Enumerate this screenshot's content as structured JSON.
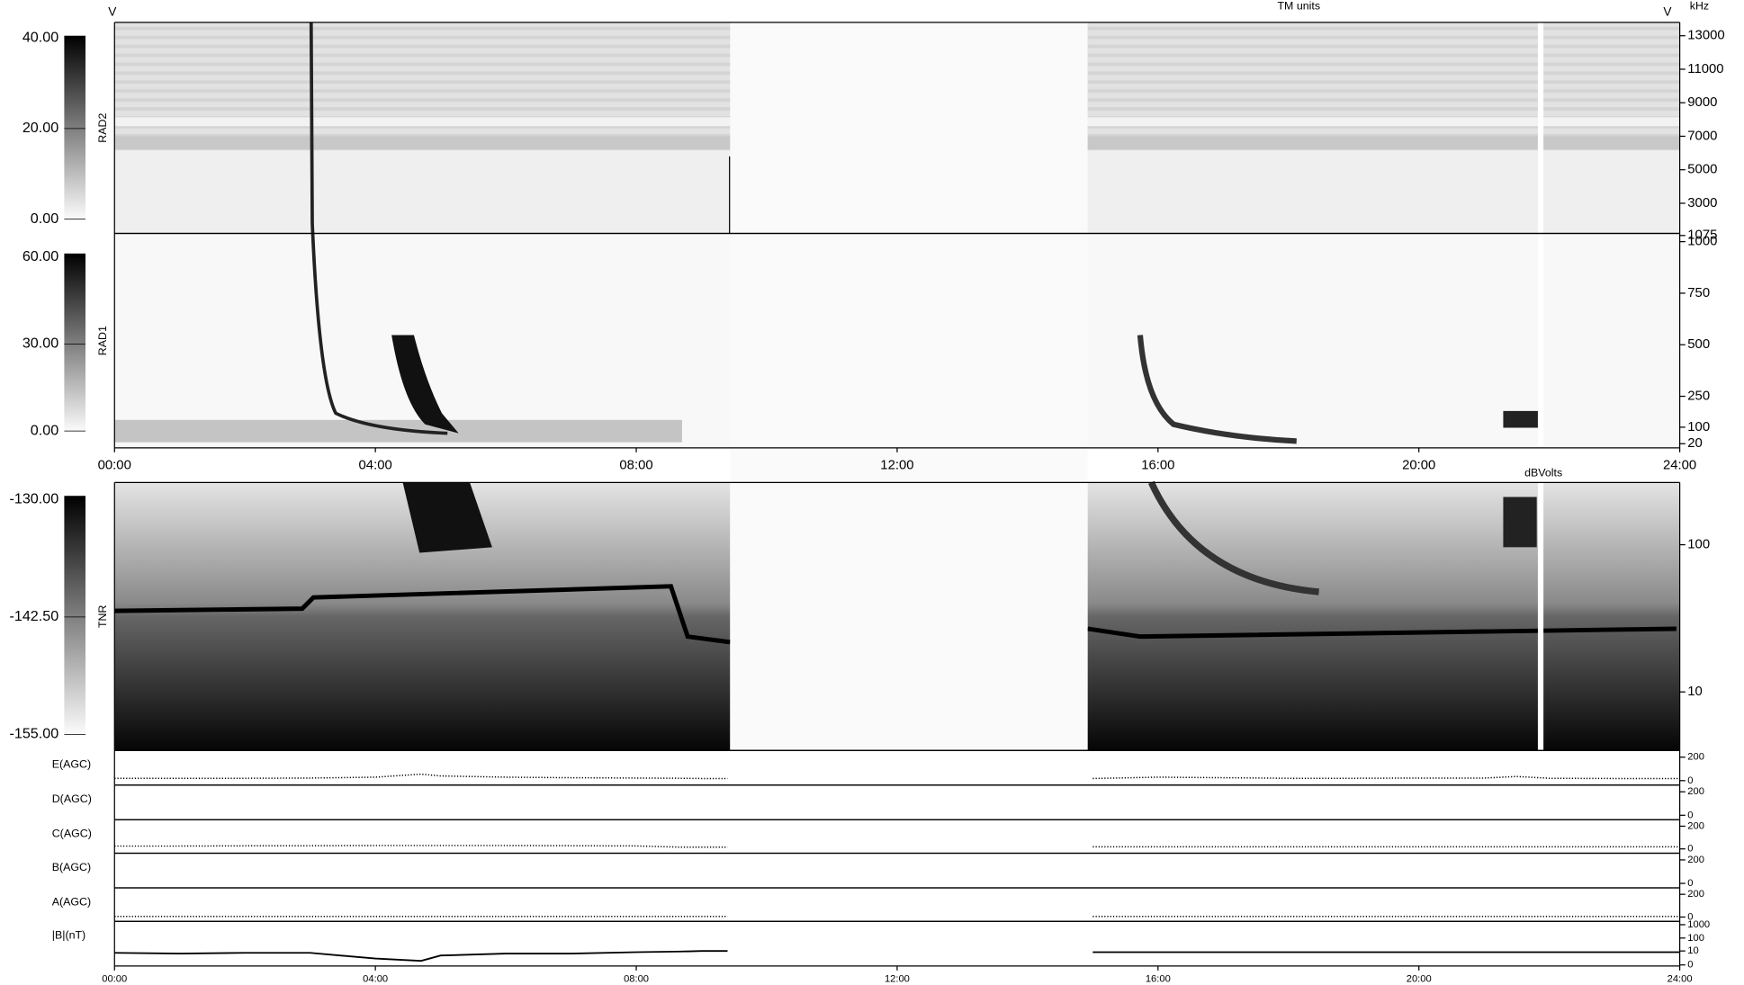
{
  "header": {
    "left_marker": "V",
    "right_marker": "V",
    "units": "TM units",
    "freq_units": "kHz"
  },
  "chart_data": [
    {
      "type": "spectrogram",
      "label": "RAD2",
      "ylim": [
        1200,
        13800
      ],
      "yticks": [
        13000,
        11000,
        9000,
        7000,
        5000,
        3000,
        1075
      ],
      "colorbar": {
        "lim": [
          -0.7,
          40.5
        ],
        "ticks": [
          {
            "value": 40,
            "label": "40.00"
          },
          {
            "value": 20,
            "label": "20.00"
          },
          {
            "value": 0,
            "label": "0.00"
          }
        ]
      }
    },
    {
      "type": "spectrogram",
      "label": "RAD1",
      "ylim": [
        0,
        1040
      ],
      "yticks": [
        1000,
        750,
        500,
        250,
        100,
        20
      ],
      "colorbar": {
        "lim": [
          -1.2,
          61.2
        ],
        "ticks": [
          {
            "value": 60,
            "label": "60.00"
          },
          {
            "value": 30,
            "label": "30.00"
          },
          {
            "value": 0,
            "label": "0.00"
          }
        ]
      },
      "xlim": [
        0,
        24
      ],
      "xticks": [
        {
          "value": 0,
          "label": "00:00"
        },
        {
          "value": 4,
          "label": "04:00"
        },
        {
          "value": 8,
          "label": "08:00"
        },
        {
          "value": 12,
          "label": "12:00"
        },
        {
          "value": 16,
          "label": "16:00"
        },
        {
          "value": 20,
          "label": "20:00"
        },
        {
          "value": 24,
          "label": "24:00"
        }
      ]
    },
    {
      "type": "spectrogram",
      "label": "TNR",
      "log_scale": true,
      "ylim": [
        4,
        265
      ],
      "yticks": [
        100,
        10
      ],
      "colorbar_units": "dBVolts",
      "colorbar": {
        "lim": [
          -155.4,
          -129.6
        ],
        "ticks": [
          {
            "value": -130,
            "label": "-130.00"
          },
          {
            "value": -142.5,
            "label": "-142.50"
          },
          {
            "value": -155,
            "label": "-155.00"
          }
        ]
      }
    },
    {
      "type": "line",
      "label": "E(AGC)",
      "ylim": [
        -38,
        257
      ],
      "yticks": [
        200,
        0
      ],
      "xlim": [
        0,
        24
      ],
      "line_style": "dotted",
      "x": [
        0,
        1,
        2,
        3,
        4,
        4.7,
        5,
        6,
        7,
        8,
        8.7,
        9,
        9.4,
        12,
        15,
        16,
        17,
        18,
        19,
        20,
        21,
        21.5,
        22,
        23,
        24
      ],
      "series": [
        {
          "name": "E(AGC)",
          "color": "#000000",
          "values": [
            20,
            20,
            20,
            22,
            30,
            55,
            40,
            30,
            25,
            22,
            20,
            18,
            18,
            null,
            18,
            30,
            25,
            20,
            20,
            22,
            22,
            35,
            20,
            18,
            18
          ]
        }
      ]
    },
    {
      "type": "line",
      "label": "D(AGC)",
      "ylim": [
        -38,
        257
      ],
      "yticks": [
        200,
        0
      ],
      "xlim": [
        0,
        24
      ]
    },
    {
      "type": "line",
      "label": "C(AGC)",
      "ylim": [
        -38,
        257
      ],
      "yticks": [
        200,
        0
      ],
      "xlim": [
        0,
        24
      ],
      "line_style": "dotted",
      "x": [
        0,
        1,
        2,
        3,
        4,
        4.7,
        5,
        6,
        7,
        8,
        8.7,
        9,
        9.4,
        12,
        15,
        16,
        17,
        18,
        19,
        20,
        21,
        21.5,
        22,
        23,
        24
      ],
      "series": [
        {
          "name": "C(AGC)",
          "color": "#000000",
          "values": [
            25,
            25,
            27,
            28,
            30,
            30,
            30,
            30,
            28,
            26,
            15,
            15,
            15,
            null,
            18,
            18,
            18,
            18,
            18,
            18,
            18,
            18,
            18,
            18,
            18
          ]
        }
      ]
    },
    {
      "type": "line",
      "label": "B(AGC)",
      "ylim": [
        -38,
        257
      ],
      "yticks": [
        200,
        0
      ],
      "xlim": [
        0,
        24
      ]
    },
    {
      "type": "line",
      "label": "A(AGC)",
      "ylim": [
        -38,
        257
      ],
      "yticks": [
        200,
        0
      ],
      "xlim": [
        0,
        24
      ],
      "line_style": "dotted",
      "x": [
        0,
        4,
        8,
        9.4,
        12,
        15,
        20,
        24
      ],
      "series": [
        {
          "name": "A(AGC)",
          "color": "#000000",
          "values": [
            5,
            5,
            5,
            5,
            null,
            5,
            5,
            5
          ]
        }
      ]
    },
    {
      "type": "line",
      "label": "|B|(nT)",
      "symlog_scale": true,
      "ylim": [
        -0.17,
        1777
      ],
      "yticks": [
        1000,
        100,
        10,
        0
      ],
      "line_style": "solid",
      "xlim": [
        0,
        24
      ],
      "xticks": [
        {
          "value": 0,
          "label": "00:00"
        },
        {
          "value": 4,
          "label": "04:00"
        },
        {
          "value": 8,
          "label": "08:00"
        },
        {
          "value": 12,
          "label": "12:00"
        },
        {
          "value": 16,
          "label": "16:00"
        },
        {
          "value": 20,
          "label": "20:00"
        },
        {
          "value": 24,
          "label": "24:00"
        }
      ],
      "x": [
        0,
        1,
        2,
        3,
        4,
        4.7,
        5,
        6,
        7,
        8,
        8.7,
        9,
        9.4,
        12,
        15,
        16,
        17,
        18,
        19,
        20,
        21,
        21.5,
        22,
        23,
        24
      ],
      "series": [
        {
          "name": "|B|(nT)",
          "color": "#000000",
          "values": [
            7,
            6,
            7,
            7,
            2,
            1,
            4,
            6,
            6,
            8,
            9,
            10,
            10,
            null,
            8,
            8,
            8,
            8,
            8,
            8,
            8,
            8,
            8,
            8,
            8
          ]
        }
      ]
    }
  ]
}
